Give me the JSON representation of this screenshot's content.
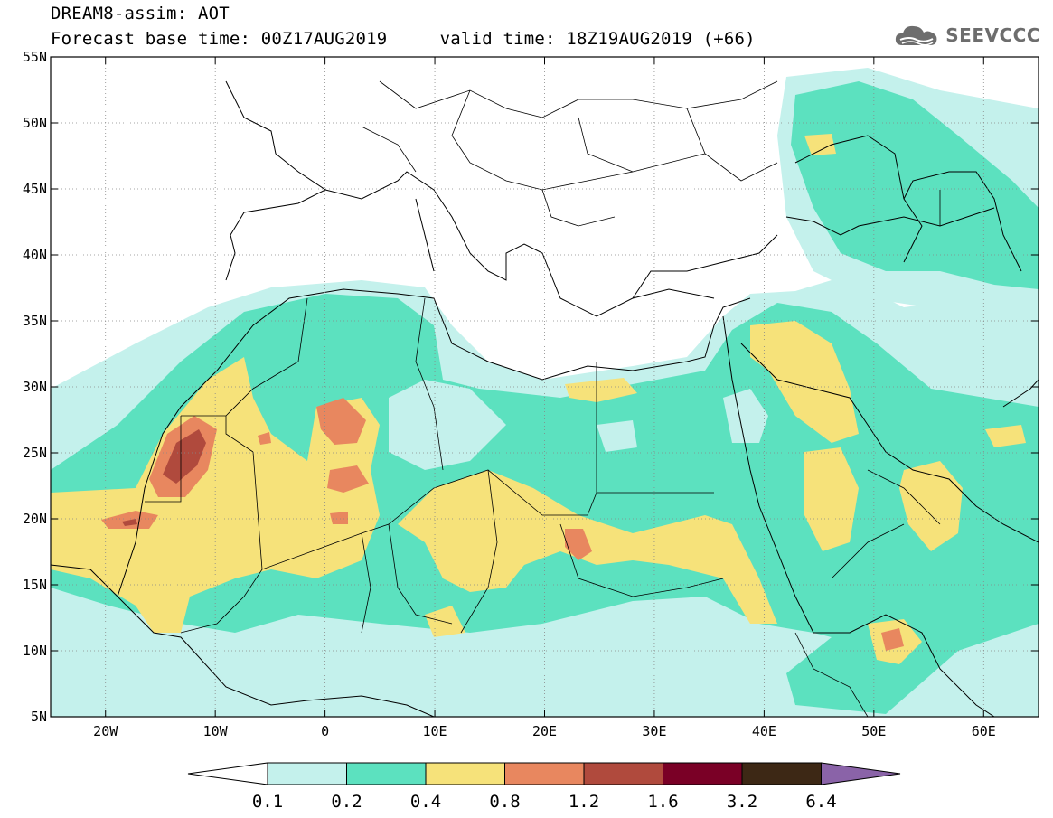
{
  "header": {
    "title_line1": "DREAM8-assim: AOT",
    "title_line2": "Forecast base time: 00Z17AUG2019     valid time: 18Z19AUG2019 (+66)"
  },
  "logo": {
    "text": "SEEVCCC",
    "icon": "cloud-icon"
  },
  "map": {
    "lon_labels": [
      "20W",
      "10W",
      "0",
      "10E",
      "20E",
      "30E",
      "40E",
      "50E",
      "60E"
    ],
    "lat_labels": [
      "55N",
      "50N",
      "45N",
      "40N",
      "35N",
      "30N",
      "25N",
      "20N",
      "15N",
      "10N",
      "5N"
    ],
    "lon_range": [
      -25,
      65
    ],
    "lat_range": [
      5,
      55
    ],
    "grid": "dotted"
  },
  "colorbar": {
    "tick_labels": [
      "0.1",
      "0.2",
      "0.4",
      "0.8",
      "1.2",
      "1.6",
      "3.2",
      "6.4"
    ],
    "colors": [
      "#ffffff",
      "#c4f1ec",
      "#5ce1bf",
      "#f6e27a",
      "#e8875f",
      "#b04a3d",
      "#7a0026",
      "#3d2815",
      "#8a63a8"
    ]
  },
  "colors": {
    "c1": "#c4f1ec",
    "c2": "#5ce1bf",
    "c3": "#f6e27a",
    "c4": "#e8875f",
    "c5": "#b04a3d"
  }
}
